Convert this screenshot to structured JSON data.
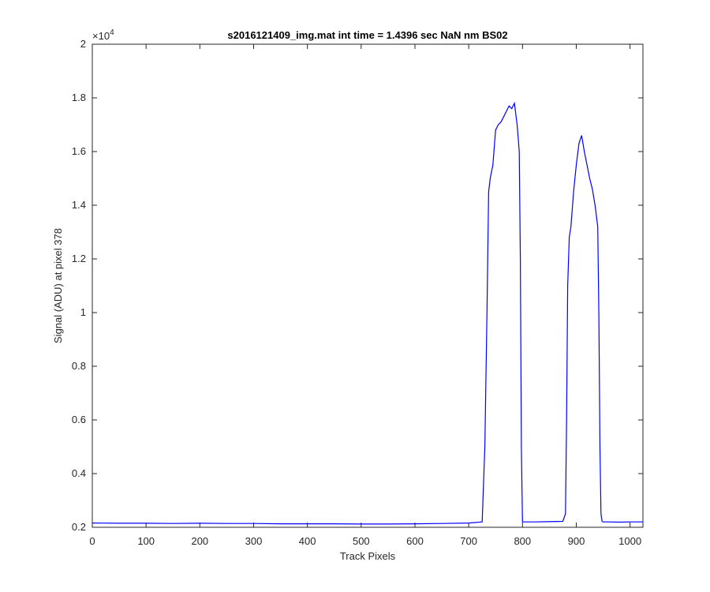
{
  "chart_data": {
    "type": "line",
    "title": "s2016121409_img.mat int time = 1.4396 sec  NaN nm BS02",
    "xlabel": "Track Pixels",
    "ylabel": "Signal (ADU) at pixel 378",
    "exponent_label": "×10",
    "exponent_power": "4",
    "xlim": [
      0,
      1024
    ],
    "ylim": [
      0.2,
      2.0
    ],
    "xticks": [
      0,
      100,
      200,
      300,
      400,
      500,
      600,
      700,
      800,
      900,
      1000
    ],
    "xtick_labels": [
      "0",
      "100",
      "200",
      "300",
      "400",
      "500",
      "600",
      "700",
      "800",
      "900",
      "1000"
    ],
    "yticks": [
      0.2,
      0.4,
      0.6,
      0.8,
      1.0,
      1.2,
      1.4,
      1.6,
      1.8,
      2.0
    ],
    "ytick_labels": [
      "0.2",
      "0.4",
      "0.6",
      "0.8",
      "1",
      "1.2",
      "1.4",
      "1.6",
      "1.8",
      "2"
    ],
    "grid": false,
    "line_color": "#0000ff",
    "series": [
      {
        "x": [
          0,
          50,
          100,
          150,
          200,
          250,
          300,
          350,
          400,
          450,
          500,
          550,
          600,
          650,
          700,
          725,
          730,
          734,
          737,
          740,
          745,
          750,
          755,
          760,
          765,
          770,
          775,
          780,
          785,
          790,
          792,
          794,
          796,
          798,
          800,
          805,
          820,
          850,
          875,
          880,
          882,
          884,
          887,
          890,
          895,
          900,
          905,
          910,
          915,
          920,
          925,
          930,
          935,
          940,
          942,
          944,
          946,
          948,
          950,
          960,
          980,
          1000,
          1024
        ],
        "y": [
          0.216,
          0.215,
          0.215,
          0.214,
          0.215,
          0.214,
          0.214,
          0.213,
          0.213,
          0.213,
          0.212,
          0.212,
          0.213,
          0.214,
          0.216,
          0.22,
          0.5,
          1.0,
          1.45,
          1.5,
          1.55,
          1.68,
          1.7,
          1.71,
          1.73,
          1.75,
          1.77,
          1.76,
          1.78,
          1.7,
          1.65,
          1.6,
          1.2,
          0.5,
          0.22,
          0.22,
          0.22,
          0.221,
          0.222,
          0.25,
          0.6,
          1.1,
          1.28,
          1.32,
          1.45,
          1.55,
          1.63,
          1.66,
          1.6,
          1.55,
          1.5,
          1.46,
          1.4,
          1.32,
          1.0,
          0.5,
          0.25,
          0.222,
          0.22,
          0.22,
          0.219,
          0.22,
          0.22
        ]
      }
    ]
  }
}
